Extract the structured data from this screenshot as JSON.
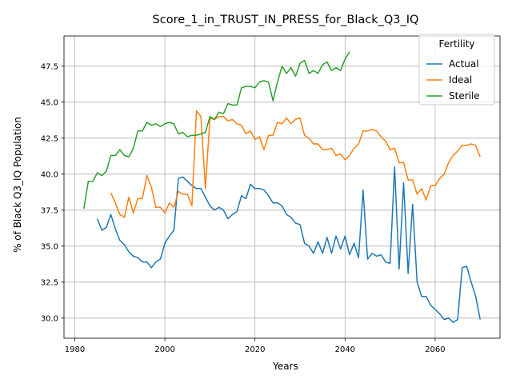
{
  "chart_data": {
    "type": "line",
    "title": "Score_1_in_TRUST_IN_PRESS_for_Black_Q3_IQ",
    "xlabel": "Years",
    "ylabel": "% of Black Q3_IQ Population",
    "xlim": [
      1977.6,
      2074.4
    ],
    "ylim": [
      28.6,
      49.6
    ],
    "x_ticks": [
      1980,
      2000,
      2020,
      2040,
      2060
    ],
    "y_ticks": [
      30.0,
      32.5,
      35.0,
      37.5,
      40.0,
      42.5,
      45.0,
      47.5
    ],
    "grid": true,
    "legend": {
      "title": "Fertility",
      "placement": "top-right"
    },
    "series": [
      {
        "name": "Actual",
        "color": "#1f77b4",
        "x": [
          1985,
          1986,
          1987,
          1988,
          1989,
          1990,
          1991,
          1992,
          1993,
          1994,
          1995,
          1996,
          1997,
          1998,
          1999,
          2000,
          2001,
          2002,
          2003,
          2004,
          2005,
          2006,
          2007,
          2008,
          2009,
          2010,
          2011,
          2012,
          2013,
          2014,
          2015,
          2016,
          2017,
          2018,
          2019,
          2020,
          2021,
          2022,
          2023,
          2024,
          2025,
          2026,
          2027,
          2028,
          2029,
          2030,
          2031,
          2032,
          2033,
          2034,
          2035,
          2036,
          2037,
          2038,
          2039,
          2040,
          2041,
          2042,
          2043,
          2044,
          2045,
          2046,
          2047,
          2048,
          2049,
          2050,
          2051,
          2052,
          2053,
          2054,
          2055,
          2056,
          2057,
          2058,
          2059,
          2060,
          2061,
          2062,
          2063,
          2064,
          2065,
          2066,
          2067,
          2068,
          2069,
          2070
        ],
        "y": [
          36.9,
          36.1,
          36.3,
          37.2,
          36.2,
          35.4,
          35.1,
          34.6,
          34.3,
          34.2,
          33.9,
          33.9,
          33.5,
          33.9,
          34.1,
          35.2,
          35.7,
          36.1,
          39.7,
          39.8,
          39.5,
          39.2,
          39.0,
          39.0,
          38.4,
          37.8,
          37.5,
          37.7,
          37.5,
          36.9,
          37.2,
          37.4,
          38.5,
          38.3,
          39.3,
          39.0,
          39.0,
          38.9,
          38.5,
          38.0,
          38.0,
          37.8,
          37.2,
          37.0,
          36.6,
          36.5,
          35.2,
          35.0,
          34.5,
          35.3,
          34.5,
          35.6,
          34.5,
          35.7,
          34.8,
          35.7,
          34.4,
          35.2,
          34.2,
          38.9,
          34.1,
          34.5,
          34.3,
          34.4,
          33.9,
          33.8,
          40.5,
          33.4,
          39.4,
          33.1,
          37.9,
          32.5,
          31.5,
          31.5,
          30.9,
          30.6,
          30.3,
          29.9,
          30.0,
          29.7,
          29.9,
          33.5,
          33.6,
          32.5,
          31.5,
          29.9
        ]
      },
      {
        "name": "Ideal",
        "color": "#ff7f0e",
        "x": [
          1988,
          1989,
          1990,
          1991,
          1992,
          1993,
          1994,
          1995,
          1996,
          1997,
          1998,
          1999,
          2000,
          2001,
          2002,
          2003,
          2004,
          2005,
          2006,
          2007,
          2008,
          2009,
          2010,
          2011,
          2012,
          2013,
          2014,
          2015,
          2016,
          2017,
          2018,
          2019,
          2020,
          2021,
          2022,
          2023,
          2024,
          2025,
          2026,
          2027,
          2028,
          2029,
          2030,
          2031,
          2032,
          2033,
          2034,
          2035,
          2036,
          2037,
          2038,
          2039,
          2040,
          2041,
          2042,
          2043,
          2044,
          2045,
          2046,
          2047,
          2048,
          2049,
          2050,
          2051,
          2052,
          2053,
          2054,
          2055,
          2056,
          2057,
          2058,
          2059,
          2060,
          2061,
          2062,
          2063,
          2064,
          2065,
          2066,
          2067,
          2068,
          2069,
          2070
        ],
        "y": [
          38.7,
          38.0,
          37.2,
          37.0,
          38.4,
          37.3,
          38.3,
          38.3,
          39.9,
          39.1,
          37.7,
          37.7,
          37.3,
          38.0,
          37.7,
          38.8,
          38.6,
          38.6,
          37.8,
          44.4,
          44.0,
          39.0,
          43.9,
          43.8,
          44.0,
          44.0,
          43.7,
          43.8,
          43.5,
          43.4,
          42.8,
          43.0,
          42.4,
          42.6,
          41.7,
          42.7,
          42.7,
          43.6,
          43.5,
          43.9,
          43.5,
          43.8,
          43.9,
          42.7,
          42.5,
          42.1,
          42.1,
          41.7,
          41.7,
          41.8,
          41.3,
          41.4,
          41.0,
          41.3,
          41.8,
          42.1,
          43.0,
          43.0,
          43.1,
          43.0,
          42.6,
          42.3,
          41.7,
          41.8,
          40.8,
          40.8,
          39.6,
          39.6,
          38.6,
          39.0,
          38.2,
          39.2,
          39.2,
          39.7,
          40.0,
          40.8,
          41.3,
          41.6,
          42.0,
          42.0,
          42.1,
          42.0,
          41.2
        ]
      },
      {
        "name": "Sterile",
        "color": "#2ca02c",
        "x": [
          1982,
          1983,
          1984,
          1985,
          1986,
          1987,
          1988,
          1989,
          1990,
          1991,
          1992,
          1993,
          1994,
          1995,
          1996,
          1997,
          1998,
          1999,
          2000,
          2001,
          2002,
          2003,
          2004,
          2005,
          2006,
          2007,
          2008,
          2009,
          2010,
          2011,
          2012,
          2013,
          2014,
          2015,
          2016,
          2017,
          2018,
          2019,
          2020,
          2021,
          2022,
          2023,
          2024,
          2025,
          2026,
          2027,
          2028,
          2029,
          2030,
          2031,
          2032,
          2033,
          2034,
          2035,
          2036,
          2037,
          2038,
          2039,
          2040,
          2041
        ],
        "y": [
          37.6,
          39.5,
          39.5,
          40.1,
          39.9,
          40.2,
          41.3,
          41.3,
          41.7,
          41.3,
          41.2,
          41.8,
          43.0,
          43.0,
          43.6,
          43.4,
          43.5,
          43.3,
          43.5,
          43.6,
          43.5,
          42.8,
          42.9,
          42.6,
          42.7,
          42.7,
          42.8,
          42.9,
          44.0,
          43.8,
          44.3,
          44.2,
          44.9,
          44.8,
          44.8,
          46.0,
          46.1,
          46.1,
          46.0,
          46.4,
          46.5,
          46.4,
          45.1,
          46.4,
          47.5,
          47.0,
          47.4,
          46.8,
          47.7,
          47.9,
          47.0,
          47.2,
          47.0,
          47.6,
          47.8,
          47.2,
          47.4,
          47.2,
          48.0,
          48.5
        ]
      }
    ]
  }
}
